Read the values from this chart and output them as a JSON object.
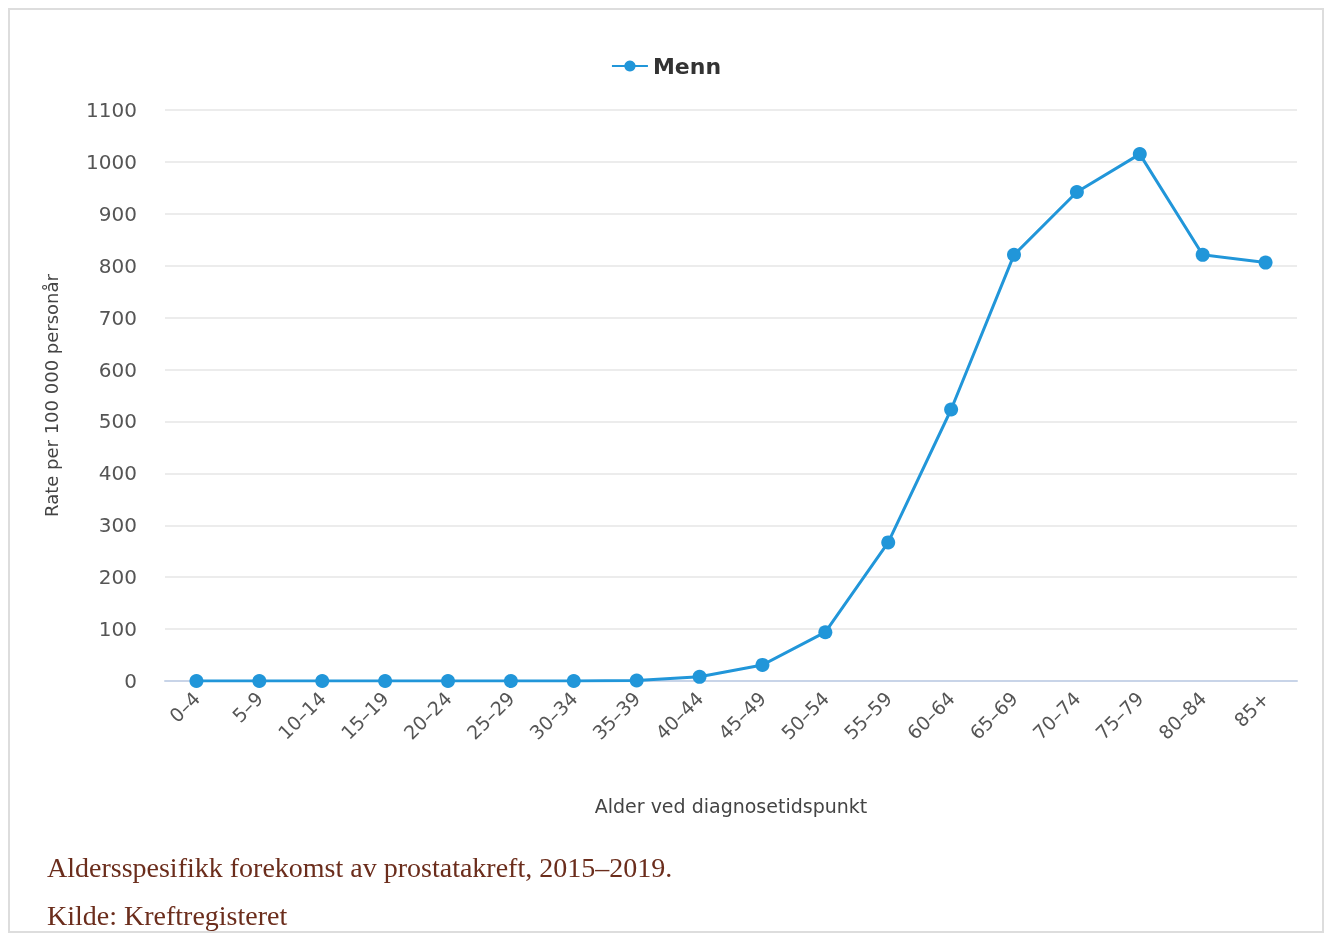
{
  "chart_data": {
    "type": "line",
    "categories": [
      "0–4",
      "5–9",
      "10–14",
      "15–19",
      "20–24",
      "25–29",
      "30–34",
      "35–39",
      "40–44",
      "45–49",
      "50–54",
      "55–59",
      "60–64",
      "65–69",
      "70–74",
      "75–79",
      "80–84",
      "85+"
    ],
    "series": [
      {
        "name": "Menn",
        "color": "#2196d9",
        "values": [
          0,
          0,
          0,
          0,
          0,
          0,
          0,
          1,
          8,
          31,
          94,
          267,
          523,
          821,
          942,
          1015,
          821,
          806
        ]
      }
    ],
    "xlabel": "Alder ved diagnosetidspunkt",
    "ylabel": "Rate per 100 000 personår",
    "ylim": [
      0,
      1100
    ],
    "yticks": [
      0,
      100,
      200,
      300,
      400,
      500,
      600,
      700,
      800,
      900,
      1000,
      1100
    ],
    "grid": "y",
    "legend": "top",
    "marker": "circle",
    "line_style": "solid",
    "annotations": [
      "Aldersspesifikk forekomst av prostatakreft, 2015–2019.",
      "Kilde: Kreftregisteret"
    ]
  }
}
